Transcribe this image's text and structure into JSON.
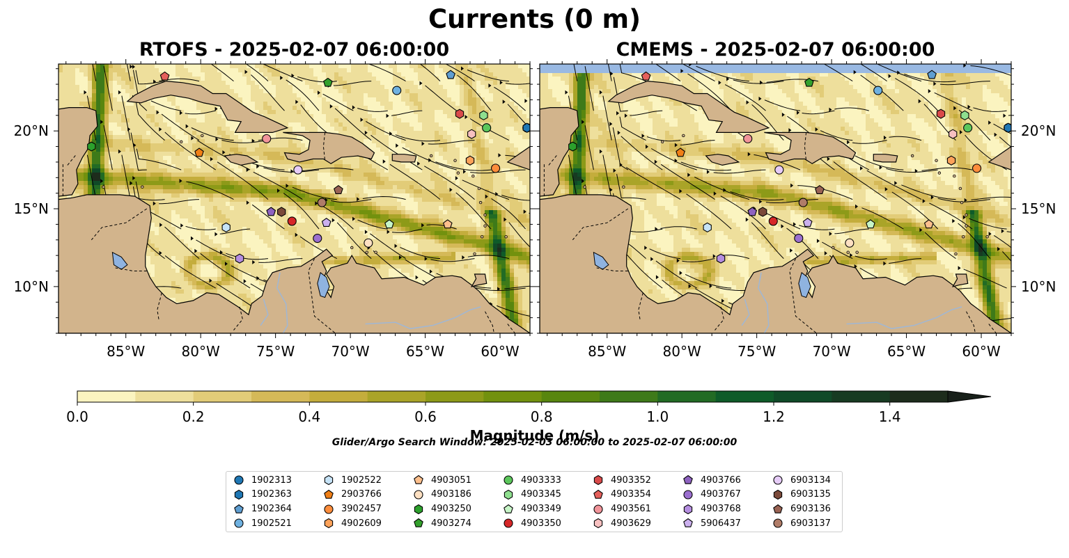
{
  "suptitle": "Currents (0 m)",
  "panels": [
    {
      "title": "RTOFS - 2025-02-07 06:00:00"
    },
    {
      "title": "CMEMS - 2025-02-07 06:00:00"
    }
  ],
  "colorbar": {
    "label": "Magnitude (m/s)",
    "ticks": [
      "0.0",
      "0.2",
      "0.4",
      "0.6",
      "0.8",
      "1.0",
      "1.2",
      "1.4"
    ],
    "colors": [
      "#fbf4c0",
      "#eedf9c",
      "#e2cc78",
      "#d5b958",
      "#c4ad3c",
      "#aaa428",
      "#8d9a18",
      "#72910e",
      "#58860f",
      "#3e7a19",
      "#226b24",
      "#0e5b29",
      "#104a28",
      "#173b22",
      "#1d2c1c",
      "#18201a"
    ]
  },
  "search_window": "Glider/Argo Search Window: 2025-02-03 06:00:00 to 2025-02-07 06:00:00",
  "colors": {
    "land": "#d2b48c",
    "water": "#8fb3e0",
    "missing": "#99b9e3"
  },
  "chart_data": {
    "type": "heatmap",
    "variable": "Surface current magnitude",
    "units": "m/s",
    "depth": "0 m",
    "colorbar_range": [
      0.0,
      1.5
    ],
    "extend": "max",
    "longitude_range": [
      -89.5,
      -58.0
    ],
    "latitude_range": [
      7.0,
      24.3
    ],
    "x_ticks": [
      "85°W",
      "80°W",
      "75°W",
      "70°W",
      "65°W",
      "60°W"
    ],
    "x_tick_values": [
      -85,
      -80,
      -75,
      -70,
      -65,
      -60
    ],
    "y_ticks": [
      "10°N",
      "15°N",
      "20°N"
    ],
    "y_tick_values": [
      10,
      15,
      20
    ],
    "panels": [
      "RTOFS - 2025-02-07 06:00:00",
      "CMEMS - 2025-02-07 06:00:00"
    ],
    "floats": [
      {
        "id": "1902313",
        "marker": "circle",
        "color": "#1f77b4",
        "lon": -58.2,
        "lat": 20.2
      },
      {
        "id": "1902363",
        "marker": "hexagon",
        "color": "#1f77b4",
        "lon": -58.2,
        "lat": 20.2
      },
      {
        "id": "1902364",
        "marker": "pentagon",
        "color": "#5f9ed1",
        "lon": -63.3,
        "lat": 23.6
      },
      {
        "id": "1902521",
        "marker": "circle",
        "color": "#6fb1e0",
        "lon": -66.9,
        "lat": 22.6
      },
      {
        "id": "1902522",
        "marker": "hexagon",
        "color": "#c6e3f7",
        "lon": -78.3,
        "lat": 13.8
      },
      {
        "id": "2903766",
        "marker": "pentagon",
        "color": "#f07f16",
        "lon": -80.1,
        "lat": 18.6
      },
      {
        "id": "3902457",
        "marker": "circle",
        "color": "#fd8d3c",
        "lon": -60.3,
        "lat": 17.6
      },
      {
        "id": "4902609",
        "marker": "hexagon",
        "color": "#fda25a",
        "lon": -62.0,
        "lat": 18.1
      },
      {
        "id": "4903051",
        "marker": "pentagon",
        "color": "#fdbf8c",
        "lon": -63.5,
        "lat": 14.0
      },
      {
        "id": "4903186",
        "marker": "circle",
        "color": "#fde0c2",
        "lon": -68.8,
        "lat": 12.8
      },
      {
        "id": "4903250",
        "marker": "hexagon",
        "color": "#2ca02c",
        "lon": -87.3,
        "lat": 19.0
      },
      {
        "id": "4903274",
        "marker": "pentagon",
        "color": "#33a02c",
        "lon": -71.5,
        "lat": 23.1
      },
      {
        "id": "4903333",
        "marker": "circle",
        "color": "#5cc75c",
        "lon": -60.9,
        "lat": 20.2
      },
      {
        "id": "4903345",
        "marker": "hexagon",
        "color": "#8fdf8f",
        "lon": -61.1,
        "lat": 21.0
      },
      {
        "id": "4903349",
        "marker": "pentagon",
        "color": "#c7f5c7",
        "lon": -67.4,
        "lat": 14.0
      },
      {
        "id": "4903350",
        "marker": "circle",
        "color": "#d62728",
        "lon": -73.9,
        "lat": 14.2
      },
      {
        "id": "4903352",
        "marker": "hexagon",
        "color": "#d94a4a",
        "lon": -62.7,
        "lat": 21.1
      },
      {
        "id": "4903354",
        "marker": "pentagon",
        "color": "#e5605b",
        "lon": -82.4,
        "lat": 23.5
      },
      {
        "id": "4903561",
        "marker": "circle",
        "color": "#f1949a",
        "lon": -75.6,
        "lat": 19.5
      },
      {
        "id": "4903629",
        "marker": "hexagon",
        "color": "#f7c0c0",
        "lon": -61.9,
        "lat": 19.8
      },
      {
        "id": "4903766",
        "marker": "pentagon",
        "color": "#8e62c0",
        "lon": -75.3,
        "lat": 14.8
      },
      {
        "id": "4903767",
        "marker": "circle",
        "color": "#9b6fcf",
        "lon": -72.2,
        "lat": 13.1
      },
      {
        "id": "4903768",
        "marker": "hexagon",
        "color": "#b58ee0",
        "lon": -77.4,
        "lat": 11.8
      },
      {
        "id": "5906437",
        "marker": "pentagon",
        "color": "#cbb0ee",
        "lon": -71.6,
        "lat": 14.1
      },
      {
        "id": "6903134",
        "marker": "circle",
        "color": "#e6ccf7",
        "lon": -73.5,
        "lat": 17.5
      },
      {
        "id": "6903135",
        "marker": "hexagon",
        "color": "#7b4a3a",
        "lon": -74.6,
        "lat": 14.8
      },
      {
        "id": "6903136",
        "marker": "pentagon",
        "color": "#9a6354",
        "lon": -70.8,
        "lat": 16.2
      },
      {
        "id": "6903137",
        "marker": "circle",
        "color": "#b07c68",
        "lon": -71.9,
        "lat": 15.4
      }
    ]
  },
  "legend": [
    {
      "id": "1902313",
      "marker": "circle",
      "color": "#1f77b4"
    },
    {
      "id": "1902363",
      "marker": "hexagon",
      "color": "#1f77b4"
    },
    {
      "id": "1902364",
      "marker": "pentagon",
      "color": "#5f9ed1"
    },
    {
      "id": "1902521",
      "marker": "circle",
      "color": "#6fb1e0"
    },
    {
      "id": "1902522",
      "marker": "hexagon",
      "color": "#c6e3f7"
    },
    {
      "id": "2903766",
      "marker": "pentagon",
      "color": "#f07f16"
    },
    {
      "id": "3902457",
      "marker": "circle",
      "color": "#fd8d3c"
    },
    {
      "id": "4902609",
      "marker": "hexagon",
      "color": "#fda25a"
    },
    {
      "id": "4903051",
      "marker": "pentagon",
      "color": "#fdbf8c"
    },
    {
      "id": "4903186",
      "marker": "circle",
      "color": "#fde0c2"
    },
    {
      "id": "4903250",
      "marker": "hexagon",
      "color": "#2ca02c"
    },
    {
      "id": "4903274",
      "marker": "pentagon",
      "color": "#33a02c"
    },
    {
      "id": "4903333",
      "marker": "circle",
      "color": "#5cc75c"
    },
    {
      "id": "4903345",
      "marker": "hexagon",
      "color": "#8fdf8f"
    },
    {
      "id": "4903349",
      "marker": "pentagon",
      "color": "#c7f5c7"
    },
    {
      "id": "4903350",
      "marker": "circle",
      "color": "#d62728"
    },
    {
      "id": "4903352",
      "marker": "hexagon",
      "color": "#d94a4a"
    },
    {
      "id": "4903354",
      "marker": "pentagon",
      "color": "#e5605b"
    },
    {
      "id": "4903561",
      "marker": "circle",
      "color": "#f1949a"
    },
    {
      "id": "4903629",
      "marker": "hexagon",
      "color": "#f7c0c0"
    },
    {
      "id": "4903766",
      "marker": "pentagon",
      "color": "#8e62c0"
    },
    {
      "id": "4903767",
      "marker": "circle",
      "color": "#9b6fcf"
    },
    {
      "id": "4903768",
      "marker": "hexagon",
      "color": "#b58ee0"
    },
    {
      "id": "5906437",
      "marker": "pentagon",
      "color": "#cbb0ee"
    },
    {
      "id": "6903134",
      "marker": "circle",
      "color": "#e6ccf7"
    },
    {
      "id": "6903135",
      "marker": "hexagon",
      "color": "#7b4a3a"
    },
    {
      "id": "6903136",
      "marker": "pentagon",
      "color": "#9a6354"
    },
    {
      "id": "6903137",
      "marker": "circle",
      "color": "#b07c68"
    }
  ]
}
